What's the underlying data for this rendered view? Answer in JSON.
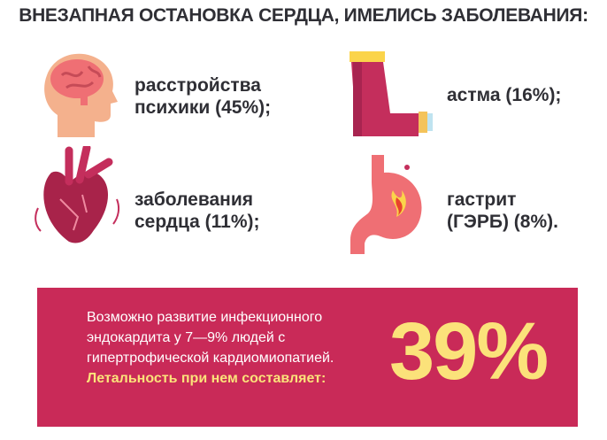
{
  "title": "ВНЕЗАПНАЯ ОСТАНОВКА СЕРДЦА, ИМЕЛИСЬ ЗАБОЛЕВАНИЯ:",
  "items": [
    {
      "icon": "brain-head-icon",
      "line1": "расстройства",
      "line2": "психики (45%);"
    },
    {
      "icon": "inhaler-icon",
      "line1": "астма (16%);",
      "line2": ""
    },
    {
      "icon": "heart-icon",
      "line1": "заболевания",
      "line2": "сердца (11%);"
    },
    {
      "icon": "stomach-icon",
      "line1": "гастрит",
      "line2": "(ГЭРБ) (8%)."
    }
  ],
  "callout": {
    "line1": "Возможно развитие инфекционного",
    "line2": "эндокардита у 7—9% людей с",
    "line3": "гипертрофической кардиомиопатией.",
    "highlight": "Летальность при нем составляет:",
    "value": "39%"
  },
  "colors": {
    "accent": "#c92a58",
    "highlight": "#fbe27a",
    "text": "#2f2f35"
  }
}
